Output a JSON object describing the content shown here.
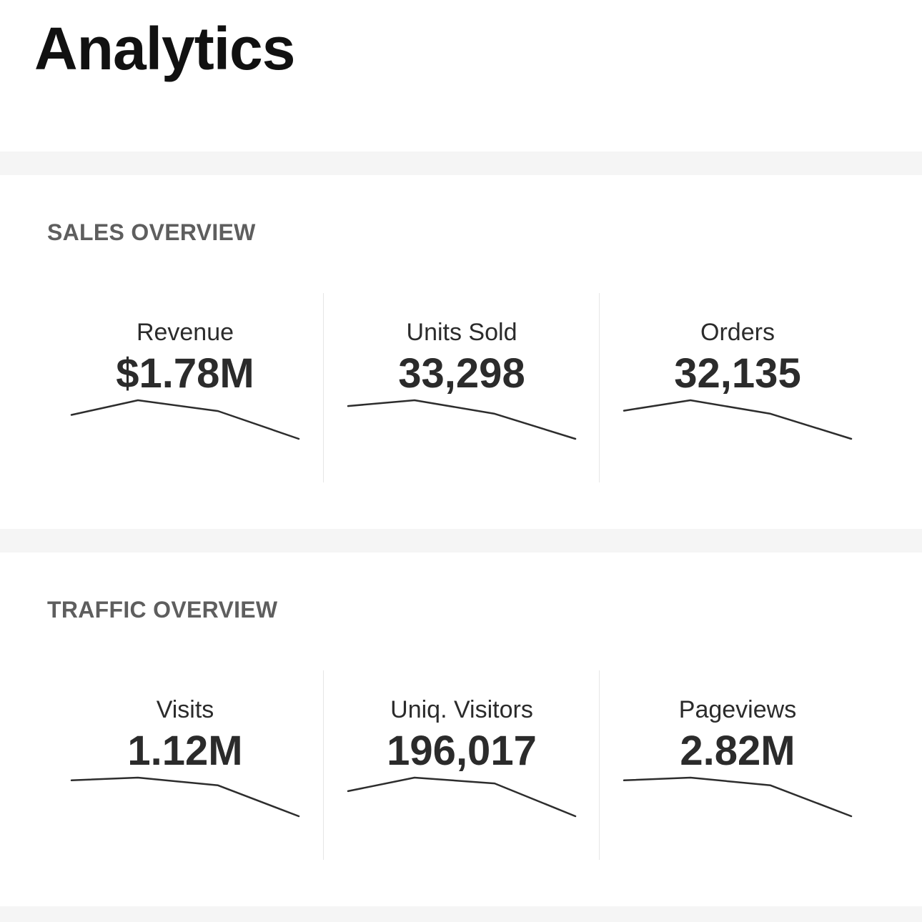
{
  "page": {
    "title": "Analytics"
  },
  "colors": {
    "divider_band": "#f5f5f5",
    "line": "#2d2d2d",
    "section_title": "#5e5e5e"
  },
  "sales": {
    "title": "SALES OVERVIEW",
    "metrics": [
      {
        "label": "Revenue",
        "value": "$1.78M",
        "trend": [
          0.62,
          1.0,
          0.72,
          0.0
        ]
      },
      {
        "label": "Units Sold",
        "value": "33,298",
        "trend": [
          0.85,
          1.0,
          0.65,
          0.0
        ]
      },
      {
        "label": "Orders",
        "value": "32,135",
        "trend": [
          0.73,
          1.0,
          0.65,
          0.0
        ]
      }
    ]
  },
  "traffic": {
    "title": "TRAFFIC OVERVIEW",
    "metrics": [
      {
        "label": "Visits",
        "value": "1.12M",
        "trend": [
          0.93,
          1.0,
          0.8,
          0.0
        ]
      },
      {
        "label": "Uniq. Visitors",
        "value": "196,017",
        "trend": [
          0.65,
          1.0,
          0.85,
          0.0
        ]
      },
      {
        "label": "Pageviews",
        "value": "2.82M",
        "trend": [
          0.93,
          1.0,
          0.8,
          0.0
        ]
      }
    ]
  }
}
